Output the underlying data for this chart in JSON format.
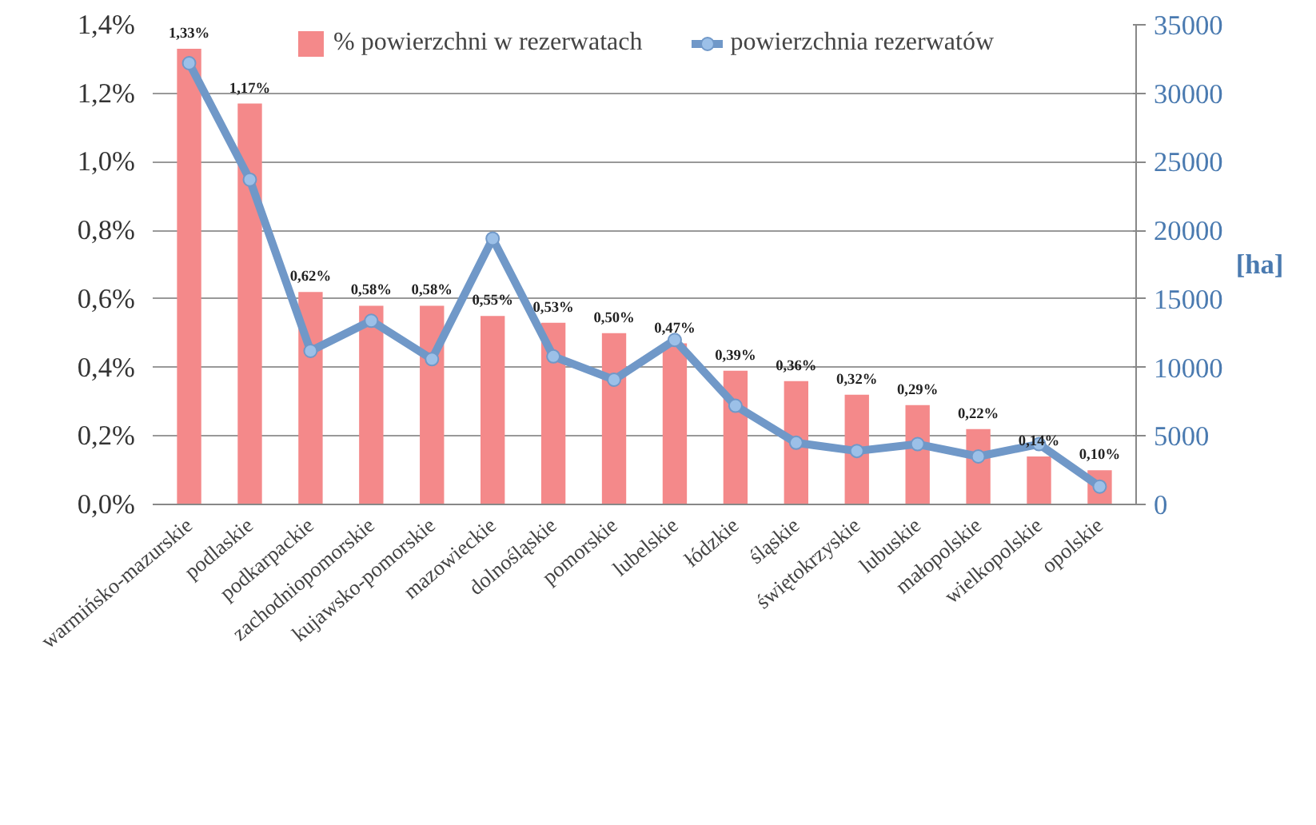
{
  "chart_data": {
    "type": "bar",
    "y2label": "[ha]",
    "categories": [
      "warmińsko-mazurskie",
      "podlaskie",
      "podkarpackie",
      "zachodniopomorskie",
      "kujawsko-pomorskie",
      "mazowieckie",
      "dolnośląskie",
      "pomorskie",
      "lubelskie",
      "łódzkie",
      "śląskie",
      "świętokrzyskie",
      "lubuskie",
      "małopolskie",
      "wielkopolskie",
      "opolskie"
    ],
    "series": [
      {
        "name": "% powierzchni w rezerwatach",
        "color": "#f4898a",
        "values": [
          1.33,
          1.17,
          0.62,
          0.58,
          0.58,
          0.55,
          0.53,
          0.5,
          0.47,
          0.39,
          0.36,
          0.32,
          0.29,
          0.22,
          0.14,
          0.1
        ],
        "value_labels": [
          "1,33%",
          "1,17%",
          "0,62%",
          "0,58%",
          "0,58%",
          "0,55%",
          "0,53%",
          "0,50%",
          "0,47%",
          "0,39%",
          "0,36%",
          "0,32%",
          "0,29%",
          "0,22%",
          "0,14%",
          "0,10%"
        ]
      },
      {
        "name": "powierzchnia rezerwatów",
        "type": "line",
        "axis": "y2",
        "color": "#7098c8",
        "marker": "circle",
        "values": [
          32200,
          23700,
          11200,
          13400,
          10600,
          19400,
          10800,
          9100,
          12000,
          7200,
          4500,
          3900,
          4400,
          3500,
          4400,
          1300
        ]
      }
    ],
    "ylim": [
      0,
      1.4
    ],
    "yticks": [
      {
        "value": 0,
        "label": "0,0%"
      },
      {
        "value": 0.2,
        "label": "0,2%"
      },
      {
        "value": 0.4,
        "label": "0,4%"
      },
      {
        "value": 0.6,
        "label": "0,6%"
      },
      {
        "value": 0.8,
        "label": "0,8%"
      },
      {
        "value": 1.0,
        "label": "1,0%"
      },
      {
        "value": 1.2,
        "label": "1,2%"
      },
      {
        "value": 1.4,
        "label": "1,4%"
      }
    ],
    "y2lim": [
      0,
      35000
    ],
    "y2ticks": [
      0,
      5000,
      10000,
      15000,
      20000,
      25000,
      30000,
      35000
    ],
    "grid": "y",
    "legend": "top"
  }
}
